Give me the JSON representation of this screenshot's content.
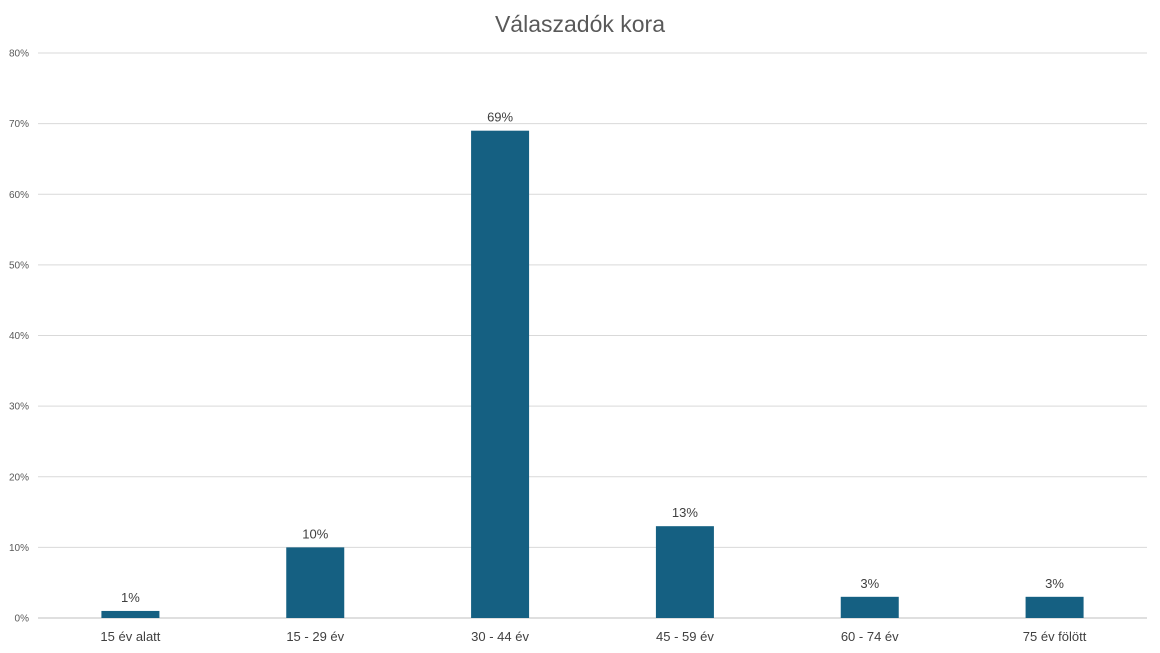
{
  "chart_data": {
    "type": "bar",
    "title": "Válaszadók kora",
    "xlabel": "",
    "ylabel": "",
    "categories": [
      "15 év alatt",
      "15 - 29 év",
      "30 - 44 év",
      "45 - 59 év",
      "60 - 74 év",
      "75 év fölött"
    ],
    "values": [
      1,
      10,
      69,
      13,
      3,
      3
    ],
    "data_labels": [
      "1%",
      "10%",
      "69%",
      "13%",
      "3%",
      "3%"
    ],
    "ylim": [
      0,
      80
    ],
    "yticks": [
      0,
      10,
      20,
      30,
      40,
      50,
      60,
      70,
      80
    ],
    "ytick_labels": [
      "0%",
      "10%",
      "20%",
      "30%",
      "40%",
      "50%",
      "60%",
      "70%",
      "80%"
    ],
    "grid": true,
    "legend": "none",
    "bar_color": "#156082"
  }
}
